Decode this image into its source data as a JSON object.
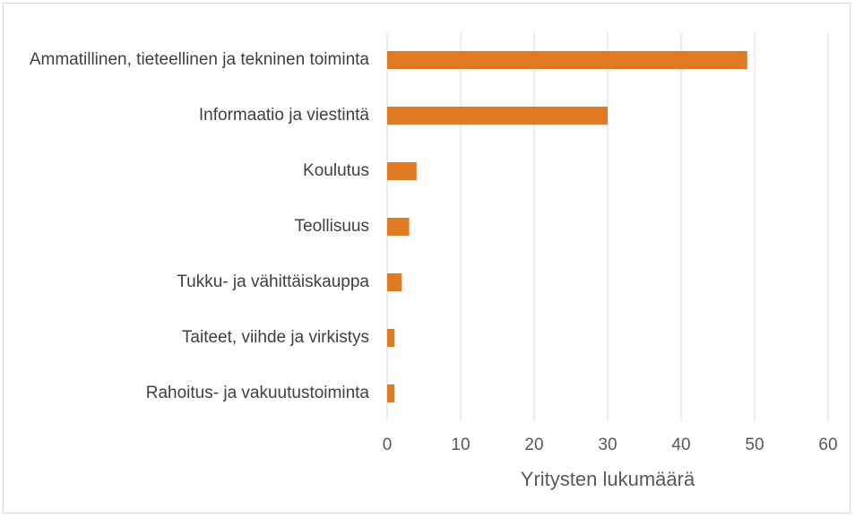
{
  "chart_data": {
    "type": "bar",
    "orientation": "horizontal",
    "categories": [
      "Ammatillinen, tieteellinen ja tekninen toiminta",
      "Informaatio ja viestintä",
      "Koulutus",
      "Teollisuus",
      "Tukku- ja vähittäiskauppa",
      "Taiteet, viihde ja virkistys",
      "Rahoitus- ja vakuutustoiminta"
    ],
    "values": [
      49,
      30,
      4,
      3,
      2,
      1,
      1
    ],
    "color": "#e07b24",
    "xlim": [
      0,
      60
    ],
    "xticks": [
      0,
      10,
      20,
      30,
      40,
      50,
      60
    ],
    "xlabel": "Yritysten lukumäärä",
    "grid": true
  }
}
